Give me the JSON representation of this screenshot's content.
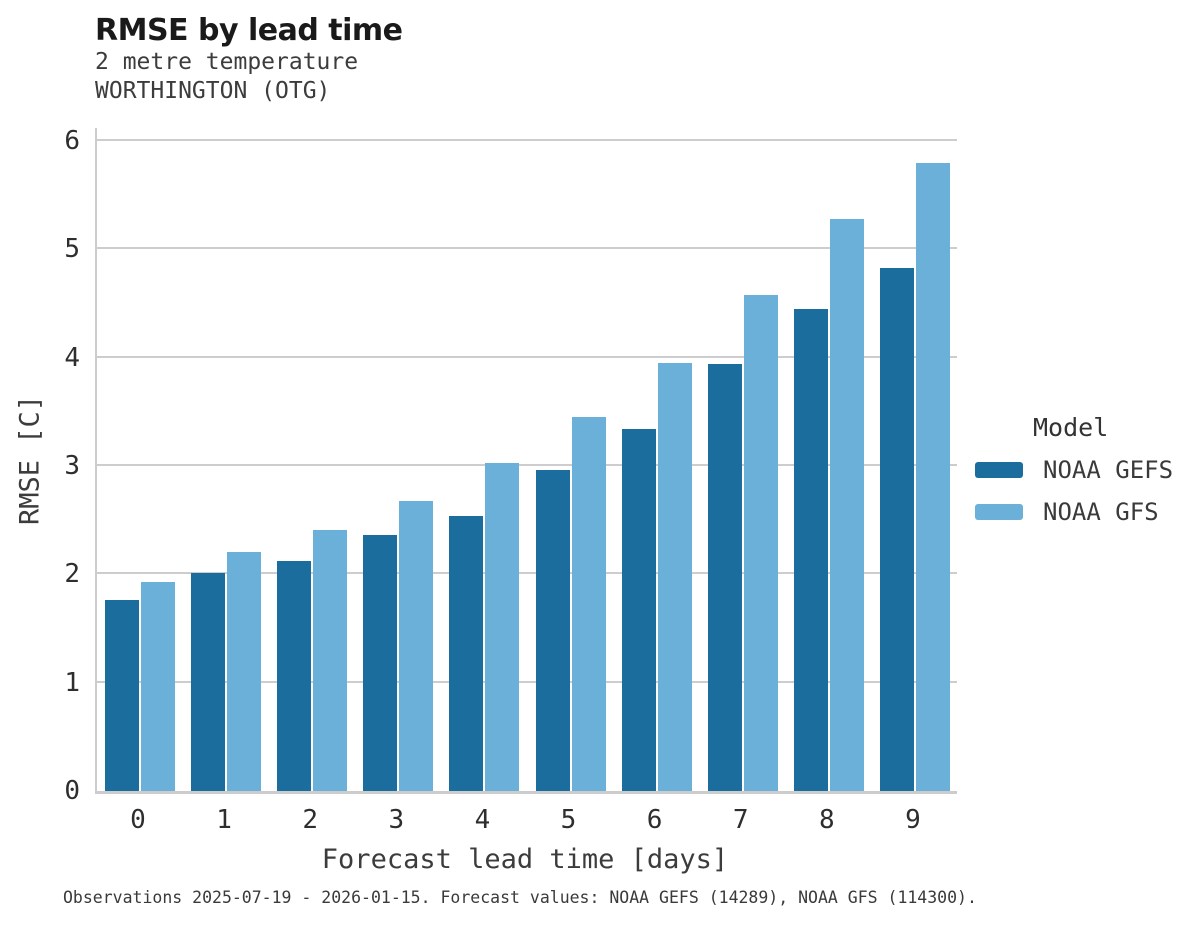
{
  "header": {
    "title": "RMSE by lead time",
    "subtitle1": "2 metre temperature",
    "subtitle2": "WORTHINGTON (OTG)"
  },
  "chart_data": {
    "type": "bar",
    "title": "RMSE by lead time",
    "subtitle": [
      "2 metre temperature",
      "WORTHINGTON (OTG)"
    ],
    "categories": [
      "0",
      "1",
      "2",
      "3",
      "4",
      "5",
      "6",
      "7",
      "8",
      "9"
    ],
    "series": [
      {
        "name": "NOAA GEFS",
        "color": "#1b6d9d",
        "values": [
          1.76,
          2.01,
          2.12,
          2.36,
          2.54,
          2.96,
          3.34,
          3.94,
          4.45,
          4.83
        ]
      },
      {
        "name": "NOAA GFS",
        "color": "#6bb0d8",
        "values": [
          1.93,
          2.21,
          2.41,
          2.68,
          3.03,
          3.45,
          3.95,
          4.58,
          5.28,
          5.8
        ]
      }
    ],
    "xlabel": "Forecast lead time [days]",
    "ylabel": "RMSE [C]",
    "ylim": [
      0,
      6.12
    ],
    "yticks": [
      0,
      1,
      2,
      3,
      4,
      5,
      6
    ],
    "grid": true,
    "grid_color": "#cdcdcd",
    "legend_title": "Model",
    "legend_position": "right"
  },
  "footer": {
    "note": "Observations 2025-07-19 - 2026-01-15. Forecast values: NOAA GEFS (14289), NOAA GFS (114300)."
  }
}
